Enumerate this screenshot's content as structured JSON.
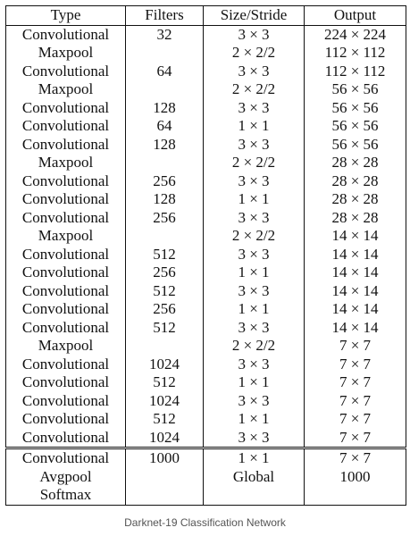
{
  "table": {
    "headers": [
      "Type",
      "Filters",
      "Size/Stride",
      "Output"
    ],
    "rows": [
      [
        "Convolutional",
        "32",
        "3 × 3",
        "224 × 224"
      ],
      [
        "Maxpool",
        "",
        "2 × 2/2",
        "112 × 112"
      ],
      [
        "Convolutional",
        "64",
        "3 × 3",
        "112 × 112"
      ],
      [
        "Maxpool",
        "",
        "2 × 2/2",
        "56 × 56"
      ],
      [
        "Convolutional",
        "128",
        "3 × 3",
        "56 × 56"
      ],
      [
        "Convolutional",
        "64",
        "1 × 1",
        "56 × 56"
      ],
      [
        "Convolutional",
        "128",
        "3 × 3",
        "56 × 56"
      ],
      [
        "Maxpool",
        "",
        "2 × 2/2",
        "28 × 28"
      ],
      [
        "Convolutional",
        "256",
        "3 × 3",
        "28 × 28"
      ],
      [
        "Convolutional",
        "128",
        "1 × 1",
        "28 × 28"
      ],
      [
        "Convolutional",
        "256",
        "3 × 3",
        "28 × 28"
      ],
      [
        "Maxpool",
        "",
        "2 × 2/2",
        "14 × 14"
      ],
      [
        "Convolutional",
        "512",
        "3 × 3",
        "14 × 14"
      ],
      [
        "Convolutional",
        "256",
        "1 × 1",
        "14 × 14"
      ],
      [
        "Convolutional",
        "512",
        "3 × 3",
        "14 × 14"
      ],
      [
        "Convolutional",
        "256",
        "1 × 1",
        "14 × 14"
      ],
      [
        "Convolutional",
        "512",
        "3 × 3",
        "14 × 14"
      ],
      [
        "Maxpool",
        "",
        "2 × 2/2",
        "7 × 7"
      ],
      [
        "Convolutional",
        "1024",
        "3 × 3",
        "7 × 7"
      ],
      [
        "Convolutional",
        "512",
        "1 × 1",
        "7 × 7"
      ],
      [
        "Convolutional",
        "1024",
        "3 × 3",
        "7 × 7"
      ],
      [
        "Convolutional",
        "512",
        "1 × 1",
        "7 × 7"
      ],
      [
        "Convolutional",
        "1024",
        "3 × 3",
        "7 × 7"
      ]
    ],
    "footer_rows": [
      [
        "Convolutional",
        "1000",
        "1 × 1",
        "7 × 7"
      ],
      [
        "Avgpool",
        "",
        "Global",
        "1000"
      ],
      [
        "Softmax",
        "",
        "",
        ""
      ]
    ]
  },
  "caption": "Darknet-19 Classification Network"
}
